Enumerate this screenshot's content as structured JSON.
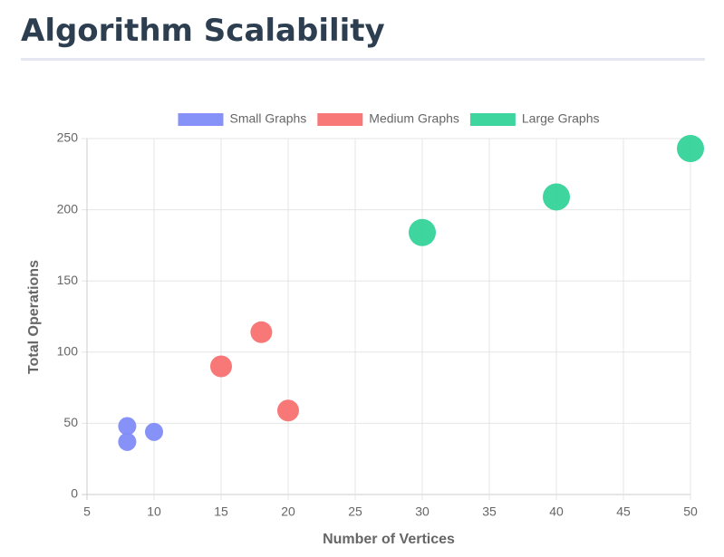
{
  "header": {
    "title": "Algorithm Scalability"
  },
  "chart_data": {
    "type": "bubble",
    "x_label": "Number of Vertices",
    "y_label": "Total Operations",
    "series": [
      {
        "name": "Small Graphs",
        "color": "#818cf8",
        "x": [
          8,
          8,
          10
        ],
        "values": [
          48,
          37,
          44
        ],
        "r": [
          10,
          10,
          10
        ]
      },
      {
        "name": "Medium Graphs",
        "color": "#f87171",
        "x": [
          15,
          18,
          20
        ],
        "values": [
          90,
          114,
          59
        ],
        "r": [
          12,
          12,
          12
        ]
      },
      {
        "name": "Large Graphs",
        "color": "#34d399",
        "x": [
          30,
          40,
          50
        ],
        "values": [
          184,
          209,
          243
        ],
        "r": [
          15,
          15,
          15
        ]
      }
    ],
    "xlim": [
      5,
      50
    ],
    "xticks": [
      5,
      10,
      15,
      20,
      25,
      30,
      35,
      40,
      45,
      50
    ],
    "ylim": [
      0,
      250
    ],
    "yticks": [
      0,
      50,
      100,
      150,
      200,
      250
    ],
    "grid": true,
    "legend": "top"
  }
}
